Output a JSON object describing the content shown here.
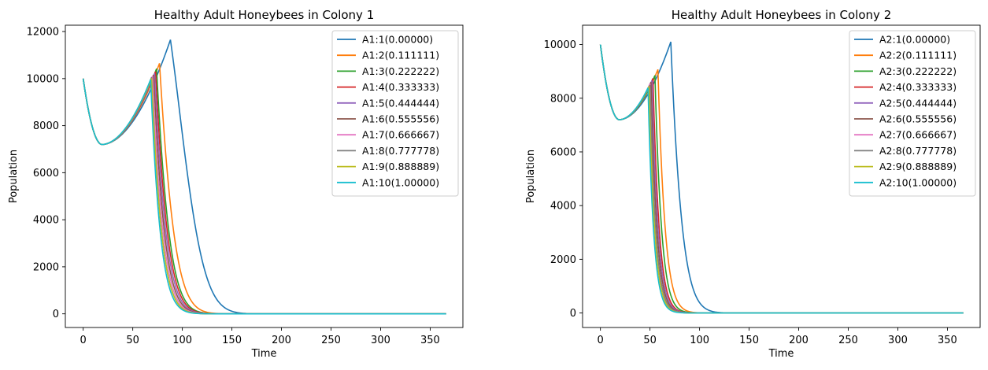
{
  "chart_data": [
    {
      "type": "line",
      "title": "Healthy Adult Honeybees in Colony 1",
      "xlabel": "Time",
      "ylabel": "Population",
      "xlim": [
        -18,
        383
      ],
      "ylim": [
        -580,
        12270
      ],
      "xticks": [
        0,
        50,
        100,
        150,
        200,
        250,
        300,
        350
      ],
      "yticks": [
        0,
        2000,
        4000,
        6000,
        8000,
        10000,
        12000
      ],
      "grid": false,
      "legend_position": "upper-right",
      "series": [
        {
          "name": "A1:1(0.00000)",
          "color": "#1f77b4",
          "peak_t": 88,
          "peak_v": 11650
        },
        {
          "name": "A1:2(0.111111)",
          "color": "#ff7f0e",
          "peak_t": 77,
          "peak_v": 10650
        },
        {
          "name": "A1:3(0.222222)",
          "color": "#2ca02c",
          "peak_t": 74,
          "peak_v": 10420
        },
        {
          "name": "A1:4(0.333333)",
          "color": "#d62728",
          "peak_t": 73,
          "peak_v": 10300
        },
        {
          "name": "A1:5(0.444444)",
          "color": "#9467bd",
          "peak_t": 72,
          "peak_v": 10220
        },
        {
          "name": "A1:6(0.555556)",
          "color": "#8c564b",
          "peak_t": 71,
          "peak_v": 10160
        },
        {
          "name": "A1:7(0.666667)",
          "color": "#e377c2",
          "peak_t": 70,
          "peak_v": 10110
        },
        {
          "name": "A1:8(0.777778)",
          "color": "#7f7f7f",
          "peak_t": 69,
          "peak_v": 10060
        },
        {
          "name": "A1:9(0.888889)",
          "color": "#bcbd22",
          "peak_t": 69,
          "peak_v": 10010
        },
        {
          "name": "A1:10(1.00000)",
          "color": "#17becf",
          "peak_t": 68,
          "peak_v": 9960
        }
      ]
    },
    {
      "type": "line",
      "title": "Healthy Adult Honeybees in Colony 2",
      "xlabel": "Time",
      "ylabel": "Population",
      "xlim": [
        -18,
        383
      ],
      "ylim": [
        -540,
        10720
      ],
      "xticks": [
        0,
        50,
        100,
        150,
        200,
        250,
        300,
        350
      ],
      "yticks": [
        0,
        2000,
        4000,
        6000,
        8000,
        10000
      ],
      "grid": false,
      "legend_position": "upper-right",
      "series": [
        {
          "name": "A2:1(0.00000)",
          "color": "#1f77b4",
          "peak_t": 71,
          "peak_v": 10100
        },
        {
          "name": "A2:2(0.111111)",
          "color": "#ff7f0e",
          "peak_t": 58,
          "peak_v": 9070
        },
        {
          "name": "A2:3(0.222222)",
          "color": "#2ca02c",
          "peak_t": 55,
          "peak_v": 8850
        },
        {
          "name": "A2:4(0.333333)",
          "color": "#d62728",
          "peak_t": 53,
          "peak_v": 8740
        },
        {
          "name": "A2:5(0.444444)",
          "color": "#9467bd",
          "peak_t": 52,
          "peak_v": 8660
        },
        {
          "name": "A2:6(0.555556)",
          "color": "#8c564b",
          "peak_t": 51,
          "peak_v": 8600
        },
        {
          "name": "A2:7(0.666667)",
          "color": "#e377c2",
          "peak_t": 50,
          "peak_v": 8540
        },
        {
          "name": "A2:8(0.777778)",
          "color": "#7f7f7f",
          "peak_t": 50,
          "peak_v": 8490
        },
        {
          "name": "A2:9(0.888889)",
          "color": "#bcbd22",
          "peak_t": 49,
          "peak_v": 8440
        },
        {
          "name": "A2:10(1.00000)",
          "color": "#17becf",
          "peak_t": 48,
          "peak_v": 8390
        }
      ]
    }
  ]
}
